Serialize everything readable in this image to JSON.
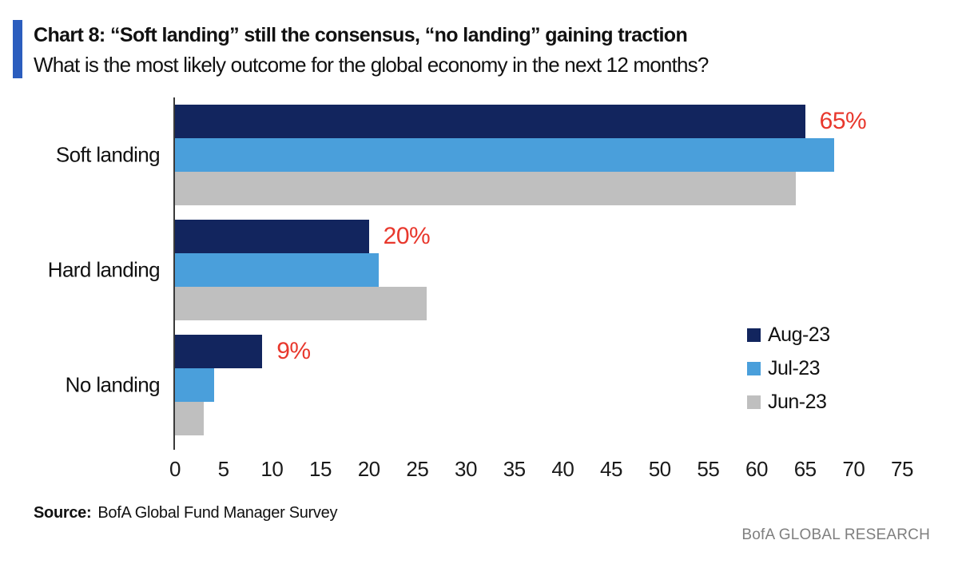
{
  "header": {
    "title": "Chart 8: “Soft landing” still the consensus, “no landing” gaining traction",
    "subtitle": "What is the most likely outcome for the global economy in the next 12 months?",
    "accent_color": "#2b5dbe"
  },
  "chart_data": {
    "type": "bar",
    "orientation": "horizontal",
    "title": "Chart 8: “Soft landing” still the consensus, “no landing” gaining traction",
    "subtitle": "What is the most likely outcome for the global economy in the next 12 months?",
    "categories": [
      "Soft landing",
      "Hard landing",
      "No landing"
    ],
    "series": [
      {
        "name": "Aug-23",
        "color": "#12255e",
        "values": [
          65,
          20,
          9
        ]
      },
      {
        "name": "Jul-23",
        "color": "#4a9fdb",
        "values": [
          68,
          21,
          4
        ]
      },
      {
        "name": "Jun-23",
        "color": "#bfbfbf",
        "values": [
          64,
          26,
          3
        ]
      }
    ],
    "data_labels": {
      "series": "Aug-23",
      "values": [
        "65%",
        "20%",
        "9%"
      ],
      "color": "#e8382d"
    },
    "x_ticks": [
      0,
      5,
      10,
      15,
      20,
      25,
      30,
      35,
      40,
      45,
      50,
      55,
      60,
      65,
      70,
      75
    ],
    "xlim": [
      0,
      75
    ],
    "grid": false,
    "legend_position": "right-middle",
    "axis_color": "#3a3a3a"
  },
  "source": {
    "label": "Source:",
    "text": "BofA Global Fund Manager Survey"
  },
  "footer": {
    "text": "BofA GLOBAL RESEARCH"
  }
}
